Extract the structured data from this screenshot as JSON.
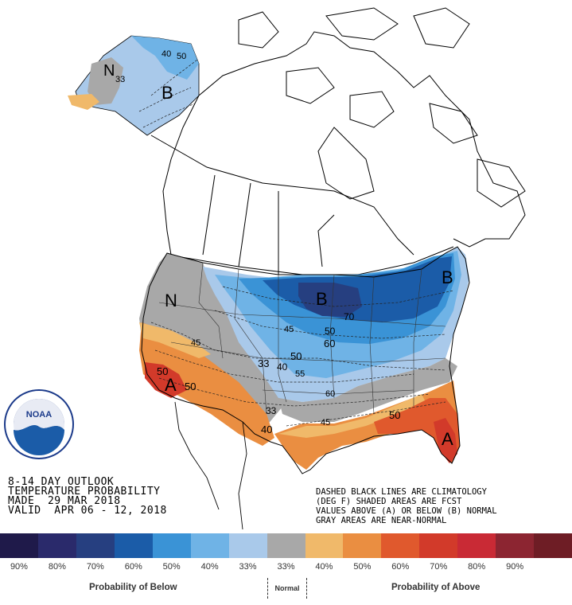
{
  "title": {
    "line1": "8-14 DAY OUTLOOK",
    "line2": "TEMPERATURE PROBABILITY",
    "line3": "MADE  29 MAR 2018",
    "line4": "VALID  APR 06 - 12, 2018"
  },
  "notes": {
    "line1": "DASHED BLACK LINES ARE CLIMATOLOGY",
    "line2": "(DEG F) SHADED AREAS ARE FCST",
    "line3": "VALUES ABOVE (A) OR BELOW (B) NORMAL",
    "line4": "GRAY AREAS ARE NEAR-NORMAL"
  },
  "logo": {
    "text": "NOAA",
    "ring_text": "NATIONAL OCEANIC AND ATMOSPHERIC ADMINISTRATION · U.S. DEPARTMENT OF COMMERCE"
  },
  "map_labels": {
    "alaska_b": "B",
    "alaska_n": "N",
    "northwest_n": "N",
    "upper_midwest_b": "B",
    "northeast_b": "B",
    "southwest_a": "A",
    "florida_a": "A",
    "lbl_33_ak": "33",
    "lbl_40_ak": "40",
    "lbl_50_ak": "50",
    "lbl_45_wus": "45",
    "lbl_50_sw": "50",
    "lbl_50_sw2": "50",
    "lbl_33_c": "33",
    "lbl_40_c": "40",
    "lbl_50_c": "50",
    "lbl_33_s": "33",
    "lbl_40_tx": "40",
    "lbl_45_n": "45",
    "lbl_50_n": "50",
    "lbl_60_e": "60",
    "lbl_70_n": "70",
    "lbl_50_se": "50",
    "lbl_45_se": "45",
    "lbl_55_c": "55",
    "lbl_60_s": "60"
  },
  "legend": {
    "colors": [
      "#1f1a4a",
      "#2a2a6b",
      "#263f80",
      "#1b5ca8",
      "#3a93d6",
      "#6fb3e6",
      "#a9c9ea",
      "#a8a8a8",
      "#f0b96a",
      "#ea8e41",
      "#e0592d",
      "#d23a2a",
      "#c92a35",
      "#8c2531",
      "#6e1d25"
    ],
    "labels": [
      "90%",
      "80%",
      "70%",
      "60%",
      "50%",
      "40%",
      "33%",
      "33%",
      "40%",
      "50%",
      "60%",
      "70%",
      "80%",
      "90%"
    ],
    "below_label": "Probability of Below",
    "normal_label": "Normal",
    "above_label": "Probability of Above"
  }
}
